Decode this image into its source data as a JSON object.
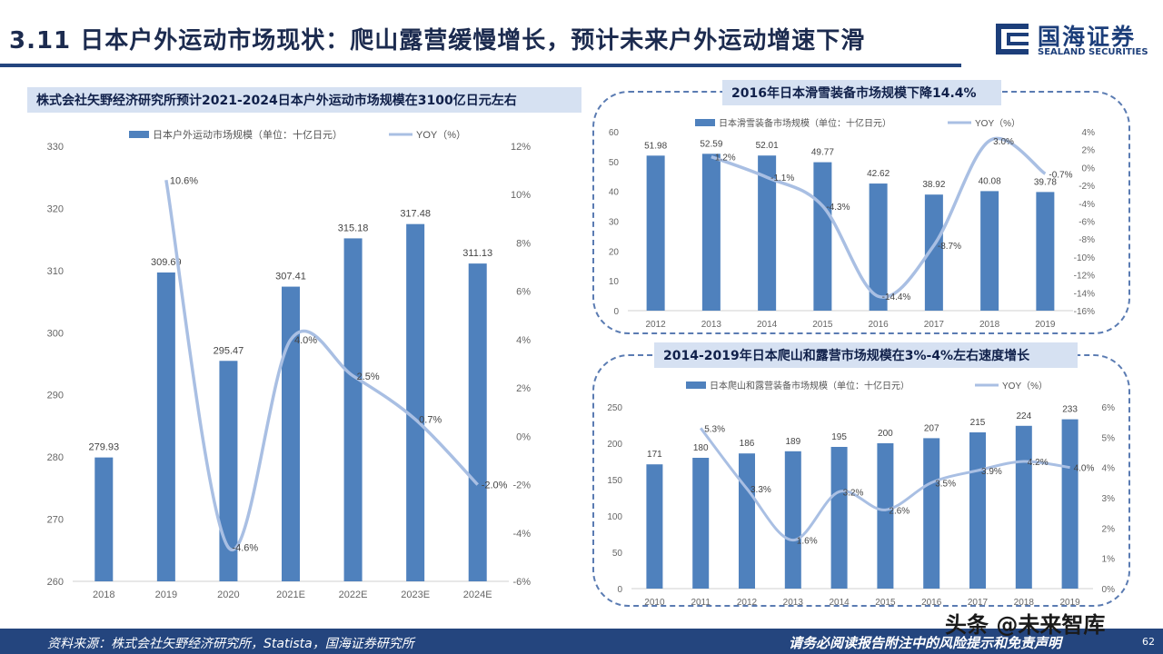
{
  "header": {
    "title": "3.11 日本户外运动市场现状：爬山露营缓慢增长，预计未来户外运动增速下滑",
    "logo_name": "国海证券",
    "logo_sub": "SEALAND SECURITIES",
    "logo_icon": "sealand-logo-icon"
  },
  "footer": {
    "source": "资料来源：株式会社矢野经济研究所，Statista，国海证券研究所",
    "disclaimer": "请务必阅读报告附注中的风险提示和免责声明",
    "page_number": "62"
  },
  "watermark": "头条 @未来智库",
  "colors": {
    "bar": "#4f81bd",
    "line": "#a9bfe3",
    "title_rule": "#24457e",
    "title_box": "#d6e1f2"
  },
  "chart_data": [
    {
      "type": "bar",
      "title": "株式会社矢野经济研究所预计2021-2024日本户外运动市场规模在3100亿日元左右",
      "categories": [
        "2018",
        "2019",
        "2020",
        "2021E",
        "2022E",
        "2023E",
        "2024E"
      ],
      "series": [
        {
          "name": "日本户外运动市场规模（单位：十亿日元）",
          "type": "bar",
          "axis": "left",
          "values": [
            279.93,
            309.69,
            295.47,
            307.41,
            315.18,
            317.48,
            311.13
          ],
          "labels": [
            "279.93",
            "309.69",
            "295.47",
            "307.41",
            "315.18",
            "317.48",
            "311.13"
          ]
        },
        {
          "name": "YOY（%）",
          "type": "line",
          "axis": "right",
          "values": [
            null,
            10.6,
            -4.6,
            4.0,
            2.5,
            0.7,
            -2.0
          ],
          "labels": [
            "",
            "10.6%",
            "-4.6%",
            "4.0%",
            "2.5%",
            "0.7%",
            "-2.0%"
          ]
        }
      ],
      "ylim": [
        260,
        330
      ],
      "yticks": [
        "330",
        "320",
        "310",
        "300",
        "290",
        "280",
        "270",
        "260"
      ],
      "y2lim": [
        -6,
        12
      ],
      "y2ticks": [
        "12%",
        "10%",
        "8%",
        "6%",
        "4%",
        "2%",
        "0%",
        "-2%",
        "-4%",
        "-6%"
      ],
      "legend": "top"
    },
    {
      "type": "bar",
      "title": "2016年日本滑雪装备市场规模下降14.4%",
      "categories": [
        "2012",
        "2013",
        "2014",
        "2015",
        "2016",
        "2017",
        "2018",
        "2019"
      ],
      "series": [
        {
          "name": "日本滑雪装备市场规模（单位：十亿日元）",
          "type": "bar",
          "axis": "left",
          "values": [
            51.98,
            52.59,
            52.01,
            49.77,
            42.62,
            38.92,
            40.08,
            39.78
          ],
          "labels": [
            "51.98",
            "52.59",
            "52.01",
            "49.77",
            "42.62",
            "38.92",
            "40.08",
            "39.78"
          ]
        },
        {
          "name": "YOY（%）",
          "type": "line",
          "axis": "right",
          "values": [
            null,
            1.2,
            -1.1,
            -4.3,
            -14.4,
            -8.7,
            3.0,
            -0.7
          ],
          "labels": [
            "",
            "1.2%",
            "-1.1%",
            "-4.3%",
            "-14.4%",
            "-8.7%",
            "3.0%",
            "-0.7%"
          ]
        }
      ],
      "ylim": [
        0,
        60
      ],
      "yticks": [
        "60",
        "50",
        "40",
        "30",
        "20",
        "10",
        "0"
      ],
      "y2lim": [
        -16,
        4
      ],
      "y2ticks": [
        "4%",
        "2%",
        "0%",
        "-2%",
        "-4%",
        "-6%",
        "-8%",
        "-10%",
        "-12%",
        "-14%",
        "-16%"
      ],
      "legend": "top"
    },
    {
      "type": "bar",
      "title": "2014-2019年日本爬山和露营市场规模在3%-4%左右速度增长",
      "categories": [
        "2010",
        "2011",
        "2012",
        "2013",
        "2014",
        "2015",
        "2016",
        "2017",
        "2018",
        "2019"
      ],
      "series": [
        {
          "name": "日本爬山和露营装备市场规模（单位：十亿日元）",
          "type": "bar",
          "axis": "left",
          "values": [
            171,
            180,
            186,
            189,
            195,
            200,
            207,
            215,
            224,
            233
          ],
          "labels": [
            "171",
            "180",
            "186",
            "189",
            "195",
            "200",
            "207",
            "215",
            "224",
            "233"
          ]
        },
        {
          "name": "YOY（%）",
          "type": "line",
          "axis": "right",
          "values": [
            null,
            5.3,
            3.3,
            1.6,
            3.2,
            2.6,
            3.5,
            3.9,
            4.2,
            4.0
          ],
          "labels": [
            "",
            "5.3%",
            "3.3%",
            "1.6%",
            "3.2%",
            "2.6%",
            "3.5%",
            "3.9%",
            "4.2%",
            "4.0%"
          ]
        }
      ],
      "ylim": [
        0,
        250
      ],
      "yticks": [
        "250",
        "200",
        "150",
        "100",
        "50",
        "0"
      ],
      "y2lim": [
        0,
        6
      ],
      "y2ticks": [
        "6%",
        "5%",
        "4%",
        "3%",
        "2%",
        "1%",
        "0%"
      ],
      "legend": "top"
    }
  ]
}
